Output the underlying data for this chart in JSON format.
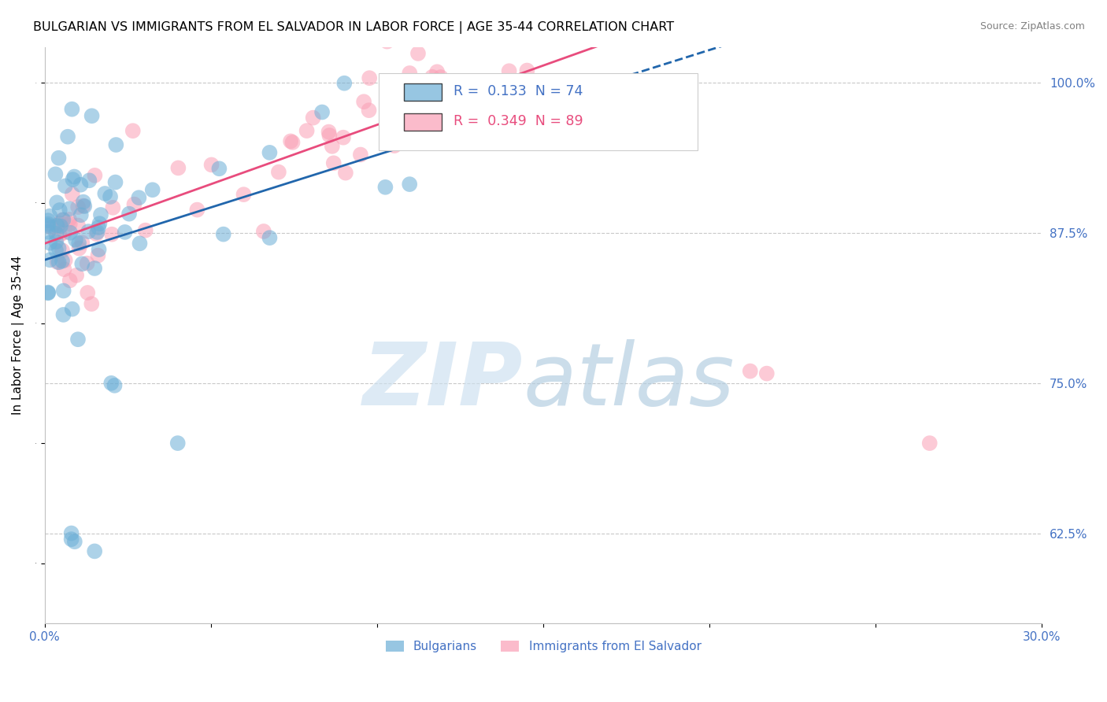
{
  "title": "BULGARIAN VS IMMIGRANTS FROM EL SALVADOR IN LABOR FORCE | AGE 35-44 CORRELATION CHART",
  "source": "Source: ZipAtlas.com",
  "ylabel": "In Labor Force | Age 35-44",
  "xlim": [
    0.0,
    0.3
  ],
  "ylim": [
    0.55,
    1.03
  ],
  "xticks": [
    0.0,
    0.05,
    0.1,
    0.15,
    0.2,
    0.25,
    0.3
  ],
  "xticklabels": [
    "0.0%",
    "",
    "",
    "",
    "",
    "",
    "30.0%"
  ],
  "yticks_right": [
    0.625,
    0.75,
    0.875,
    1.0
  ],
  "yticklabels_right": [
    "62.5%",
    "75.0%",
    "87.5%",
    "100.0%"
  ],
  "blue_R": 0.133,
  "blue_N": 74,
  "pink_R": 0.349,
  "pink_N": 89,
  "blue_color": "#6baed6",
  "pink_color": "#fa9fb5",
  "blue_line_color": "#2166ac",
  "pink_line_color": "#e84c7d",
  "axis_color": "#4472C4",
  "background_color": "#ffffff",
  "figsize": [
    14.06,
    8.92
  ],
  "dpi": 100
}
